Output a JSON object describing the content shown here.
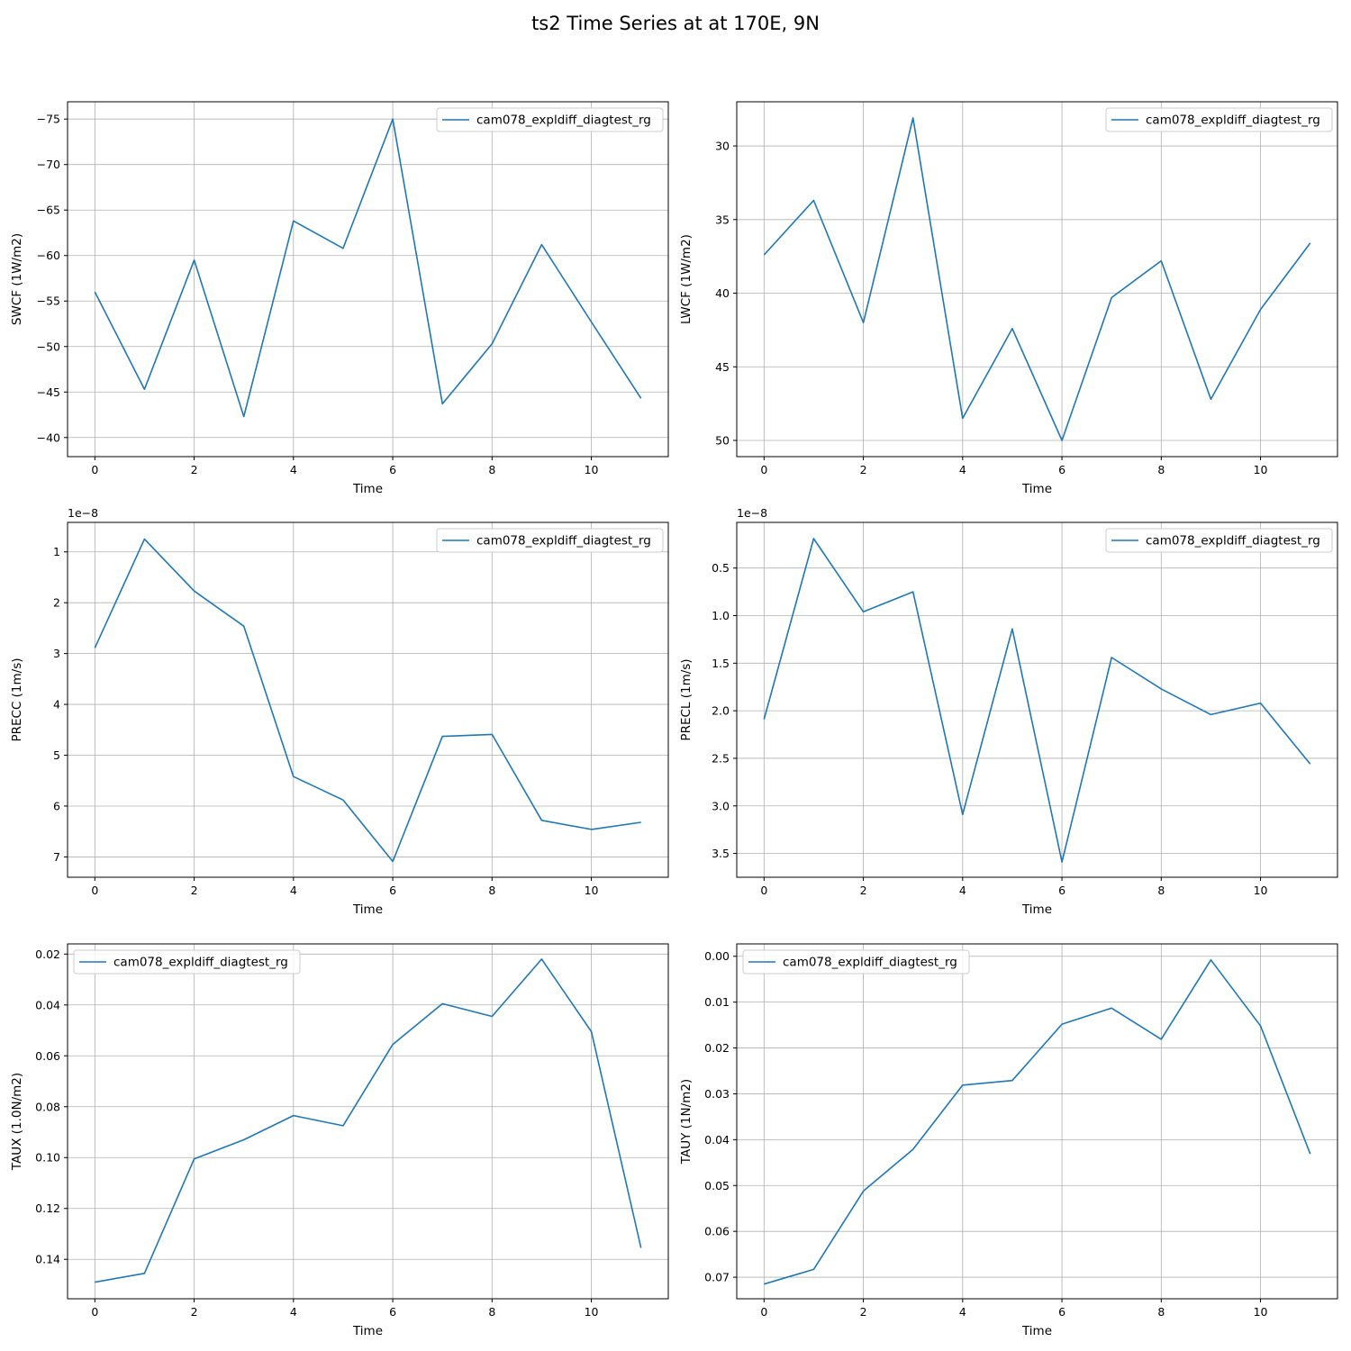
{
  "figure": {
    "title": "ts2 Time Series at at 170E, 9N"
  },
  "colors": {
    "line": "#1f77b4",
    "grid": "#b0b0b0",
    "axis": "#000000"
  },
  "chart_data": [
    {
      "type": "line",
      "xlabel": "Time",
      "ylabel": "SWCF (1W/m2)",
      "y_inverted": true,
      "xlim": [
        -0.55,
        11.55
      ],
      "ylim": [
        -37.9,
        -76.9
      ],
      "xticks": [
        0,
        2,
        4,
        6,
        8,
        10
      ],
      "yticks": [
        -40,
        -45,
        -50,
        -55,
        -60,
        -65,
        -70,
        -75
      ],
      "ytick_labels": [
        "−40",
        "−45",
        "−50",
        "−55",
        "−60",
        "−65",
        "−70",
        "−75"
      ],
      "offset_label": "",
      "grid": true,
      "legend_loc": "upper right",
      "series": [
        {
          "name": "cam078_expldiff_diagtest_rg",
          "x": [
            0,
            1,
            2,
            3,
            4,
            5,
            6,
            7,
            8,
            9,
            10,
            11
          ],
          "y": [
            -56.0,
            -45.3,
            -59.5,
            -42.3,
            -63.8,
            -60.8,
            -75.0,
            -43.7,
            -50.3,
            -61.2,
            -52.7,
            -44.3
          ]
        }
      ]
    },
    {
      "type": "line",
      "xlabel": "Time",
      "ylabel": "LWCF (1W/m2)",
      "y_inverted": true,
      "xlim": [
        -0.55,
        11.55
      ],
      "ylim": [
        51.1,
        27.0
      ],
      "xticks": [
        0,
        2,
        4,
        6,
        8,
        10
      ],
      "yticks": [
        30,
        35,
        40,
        45,
        50
      ],
      "ytick_labels": [
        "30",
        "35",
        "40",
        "45",
        "50"
      ],
      "offset_label": "",
      "grid": true,
      "legend_loc": "upper right",
      "series": [
        {
          "name": "cam078_expldiff_diagtest_rg",
          "x": [
            0,
            1,
            2,
            3,
            4,
            5,
            6,
            7,
            8,
            9,
            10,
            11
          ],
          "y": [
            37.4,
            33.7,
            42.0,
            28.1,
            48.5,
            42.4,
            50.0,
            40.3,
            37.8,
            47.2,
            41.1,
            36.6
          ]
        }
      ]
    },
    {
      "type": "line",
      "xlabel": "Time",
      "ylabel": "PRECC (1m/s)",
      "y_inverted": true,
      "xlim": [
        -0.55,
        11.55
      ],
      "ylim": [
        7.4,
        0.42
      ],
      "xticks": [
        0,
        2,
        4,
        6,
        8,
        10
      ],
      "yticks": [
        1,
        2,
        3,
        4,
        5,
        6,
        7
      ],
      "ytick_labels": [
        "1",
        "2",
        "3",
        "4",
        "5",
        "6",
        "7"
      ],
      "offset_label": "1e−8",
      "grid": true,
      "legend_loc": "upper right",
      "series": [
        {
          "name": "cam078_expldiff_diagtest_rg",
          "x": [
            0,
            1,
            2,
            3,
            4,
            5,
            6,
            7,
            8,
            9,
            10,
            11
          ],
          "y": [
            2.89,
            0.75,
            1.77,
            2.46,
            5.42,
            5.88,
            7.09,
            4.63,
            4.59,
            6.28,
            6.46,
            6.32
          ]
        }
      ]
    },
    {
      "type": "line",
      "xlabel": "Time",
      "ylabel": "PRECL (1m/s)",
      "y_inverted": true,
      "xlim": [
        -0.55,
        11.55
      ],
      "ylim": [
        3.75,
        0.02
      ],
      "xticks": [
        0,
        2,
        4,
        6,
        8,
        10
      ],
      "yticks": [
        0.5,
        1.0,
        1.5,
        2.0,
        2.5,
        3.0,
        3.5
      ],
      "ytick_labels": [
        "0.5",
        "1.0",
        "1.5",
        "2.0",
        "2.5",
        "3.0",
        "3.5"
      ],
      "offset_label": "1e−8",
      "grid": true,
      "legend_loc": "upper right",
      "series": [
        {
          "name": "cam078_expldiff_diagtest_rg",
          "x": [
            0,
            1,
            2,
            3,
            4,
            5,
            6,
            7,
            8,
            9,
            10,
            11
          ],
          "y": [
            2.09,
            0.19,
            0.96,
            0.75,
            3.09,
            1.14,
            3.59,
            1.44,
            1.77,
            2.04,
            1.92,
            2.56
          ]
        }
      ]
    },
    {
      "type": "line",
      "xlabel": "Time",
      "ylabel": "TAUX (1.0N/m2)",
      "y_inverted": true,
      "xlim": [
        -0.55,
        11.55
      ],
      "ylim": [
        0.1555,
        0.016
      ],
      "xticks": [
        0,
        2,
        4,
        6,
        8,
        10
      ],
      "yticks": [
        0.02,
        0.04,
        0.06,
        0.08,
        0.1,
        0.12,
        0.14
      ],
      "ytick_labels": [
        "0.02",
        "0.04",
        "0.06",
        "0.08",
        "0.10",
        "0.12",
        "0.14"
      ],
      "offset_label": "",
      "grid": true,
      "legend_loc": "upper left",
      "series": [
        {
          "name": "cam078_expldiff_diagtest_rg",
          "x": [
            0,
            1,
            2,
            3,
            4,
            5,
            6,
            7,
            8,
            9,
            10,
            11
          ],
          "y": [
            0.149,
            0.1455,
            0.1005,
            0.093,
            0.0835,
            0.0875,
            0.0555,
            0.0395,
            0.0445,
            0.022,
            0.0505,
            0.1355
          ]
        }
      ]
    },
    {
      "type": "line",
      "xlabel": "Time",
      "ylabel": "TAUY (1N/m2)",
      "y_inverted": true,
      "xlim": [
        -0.55,
        11.55
      ],
      "ylim": [
        0.0747,
        -0.0027
      ],
      "xticks": [
        0,
        2,
        4,
        6,
        8,
        10
      ],
      "yticks": [
        0.0,
        0.01,
        0.02,
        0.03,
        0.04,
        0.05,
        0.06,
        0.07
      ],
      "ytick_labels": [
        "0.00",
        "0.01",
        "0.02",
        "0.03",
        "0.04",
        "0.05",
        "0.06",
        "0.07"
      ],
      "offset_label": "",
      "grid": true,
      "legend_loc": "upper left",
      "series": [
        {
          "name": "cam078_expldiff_diagtest_rg",
          "x": [
            0,
            1,
            2,
            3,
            4,
            5,
            6,
            7,
            8,
            9,
            10,
            11
          ],
          "y": [
            0.0715,
            0.0683,
            0.0512,
            0.0421,
            0.0281,
            0.0271,
            0.0148,
            0.0113,
            0.0181,
            0.0008,
            0.0152,
            0.0431
          ]
        }
      ]
    }
  ]
}
